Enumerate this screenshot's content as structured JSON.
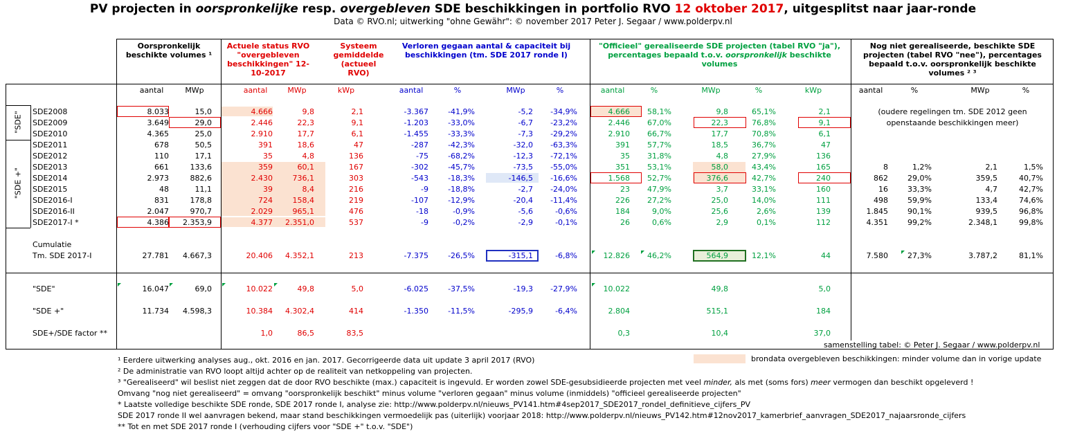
{
  "title": {
    "p1": "PV projecten in ",
    "p2": "oorspronkelijke",
    "p3": " resp. ",
    "p4": "overgebleven",
    "p5": " SDE beschikkingen in portfolio RVO ",
    "date": "12 oktober 2017",
    "p6": ", uitgesplitst naar jaar-ronde"
  },
  "subtitle": "Data © RVO.nl; uitwerking \"ohne Gewähr\": © november 2017 Peter J. Segaar / www.polderpv.nl",
  "headers": {
    "orig": "Oorspronkelijk beschikte volumes ¹",
    "actual": "Actuele status RVO \"overgebleven beschikkingen\" 12-10-2017",
    "system": "Systeem gemiddelde (actueel RVO)",
    "lost": "Verloren gegaan aantal & capaciteit bij beschikkingen (tm. SDE 2017 ronde I)",
    "realised_a": "\"Officieel\" gerealiseerde SDE projecten (tabel RVO \"ja\"), percentages bepaald t.o.v. ",
    "realised_b": "oorspronkelijk",
    "realised_c": " beschikte volumes",
    "notyet": "Nog niet gerealiseerde, beschikte SDE projecten (tabel RVO \"nee\"), percentages bepaald t.o.v. oorspronkelijk beschikte volumes ² ³"
  },
  "units": [
    "aantal",
    "MWp",
    "aantal",
    "MWp",
    "kWp",
    "aantal",
    "%",
    "MWp",
    "%",
    "aantal",
    "%",
    "MWp",
    "%",
    "kWp",
    "aantal",
    "%",
    "MWp",
    "%"
  ],
  "group_labels": {
    "sde": "\"SDE\"",
    "sdeplus": "\"SDE +\""
  },
  "rows": [
    {
      "label": "SDE2008",
      "v": [
        "8.033",
        "15,0",
        "4.666",
        "9,8",
        "2,1",
        "-3.367",
        "-41,9%",
        "-5,2",
        "-34,9%",
        "4.666",
        "58,1%",
        "9,8",
        "65,1%",
        "2,1",
        "",
        "",
        "",
        ""
      ]
    },
    {
      "label": "SDE2009",
      "v": [
        "3.649",
        "29,0",
        "2.446",
        "22,3",
        "9,1",
        "-1.203",
        "-33,0%",
        "-6,7",
        "-23,2%",
        "2.446",
        "67,0%",
        "22,3",
        "76,8%",
        "9,1",
        "",
        "",
        "",
        ""
      ]
    },
    {
      "label": "SDE2010",
      "v": [
        "4.365",
        "25,0",
        "2.910",
        "17,7",
        "6,1",
        "-1.455",
        "-33,3%",
        "-7,3",
        "-29,2%",
        "2.910",
        "66,7%",
        "17,7",
        "70,8%",
        "6,1",
        "",
        "",
        "",
        ""
      ]
    },
    {
      "label": "SDE2011",
      "v": [
        "678",
        "50,5",
        "391",
        "18,6",
        "47",
        "-287",
        "-42,3%",
        "-32,0",
        "-63,3%",
        "391",
        "57,7%",
        "18,5",
        "36,7%",
        "47",
        "",
        "",
        "",
        ""
      ]
    },
    {
      "label": "SDE2012",
      "v": [
        "110",
        "17,1",
        "35",
        "4,8",
        "136",
        "-75",
        "-68,2%",
        "-12,3",
        "-72,1%",
        "35",
        "31,8%",
        "4,8",
        "27,9%",
        "136",
        "",
        "",
        "",
        ""
      ]
    },
    {
      "label": "SDE2013",
      "v": [
        "661",
        "133,6",
        "359",
        "60,1",
        "167",
        "-302",
        "-45,7%",
        "-73,5",
        "-55,0%",
        "351",
        "53,1%",
        "58,0",
        "43,4%",
        "165",
        "8",
        "1,2%",
        "2,1",
        "1,5%"
      ]
    },
    {
      "label": "SDE2014",
      "v": [
        "2.973",
        "882,6",
        "2.430",
        "736,1",
        "303",
        "-543",
        "-18,3%",
        "-146,5",
        "-16,6%",
        "1.568",
        "52,7%",
        "376,6",
        "42,7%",
        "240",
        "862",
        "29,0%",
        "359,5",
        "40,7%"
      ]
    },
    {
      "label": "SDE2015",
      "v": [
        "48",
        "11,1",
        "39",
        "8,4",
        "216",
        "-9",
        "-18,8%",
        "-2,7",
        "-24,0%",
        "23",
        "47,9%",
        "3,7",
        "33,1%",
        "160",
        "16",
        "33,3%",
        "4,7",
        "42,7%"
      ]
    },
    {
      "label": "SDE2016-I",
      "v": [
        "831",
        "178,8",
        "724",
        "158,4",
        "219",
        "-107",
        "-12,9%",
        "-20,4",
        "-11,4%",
        "226",
        "27,2%",
        "25,0",
        "14,0%",
        "111",
        "498",
        "59,9%",
        "133,4",
        "74,6%"
      ]
    },
    {
      "label": "SDE2016-II",
      "v": [
        "2.047",
        "970,7",
        "2.029",
        "965,1",
        "476",
        "-18",
        "-0,9%",
        "-5,6",
        "-0,6%",
        "184",
        "9,0%",
        "25,6",
        "2,6%",
        "139",
        "1.845",
        "90,1%",
        "939,5",
        "96,8%"
      ]
    },
    {
      "label": "SDE2017-I *",
      "v": [
        "4.386",
        "2.353,9",
        "4.377",
        "2.351,0",
        "537",
        "-9",
        "-0,2%",
        "-2,9",
        "-0,1%",
        "26",
        "0,6%",
        "2,9",
        "0,1%",
        "112",
        "4.351",
        "99,2%",
        "2.348,1",
        "99,8%"
      ]
    }
  ],
  "old_note_1": "(oudere regelingen tm. SDE 2012 geen",
  "old_note_2": "openstaande beschikkingen meer)",
  "cumulatie": {
    "label1": "Cumulatie",
    "label2": "Tm. SDE 2017-I",
    "v": [
      "27.781",
      "4.667,3",
      "20.406",
      "4.352,1",
      "213",
      "-7.375",
      "-26,5%",
      "-315,1",
      "-6,8%",
      "12.826",
      "46,2%",
      "564,9",
      "12,1%",
      "44",
      "7.580",
      "27,3%",
      "3.787,2",
      "81,1%"
    ]
  },
  "summary": [
    {
      "label": "\"SDE\"",
      "v": [
        "16.047",
        "69,0",
        "10.022",
        "49,8",
        "5,0",
        "-6.025",
        "-37,5%",
        "-19,3",
        "-27,9%",
        "10.022",
        "",
        "49,8",
        "",
        "5,0",
        "",
        "",
        "",
        ""
      ]
    },
    {
      "label": "\"SDE +\"",
      "v": [
        "11.734",
        "4.598,3",
        "10.384",
        "4.302,4",
        "414",
        "-1.350",
        "-11,5%",
        "-295,9",
        "-6,4%",
        "2.804",
        "",
        "515,1",
        "",
        "184",
        "",
        "",
        "",
        ""
      ]
    },
    {
      "label": "SDE+/SDE factor **",
      "v": [
        "",
        "",
        "1,0",
        "86,5",
        "83,5",
        "",
        "",
        "",
        "",
        "0,3",
        "",
        "10,4",
        "",
        "37,0",
        "",
        "",
        "",
        ""
      ]
    }
  ],
  "credit": "samenstelling tabel: © Peter J. Segaar / www.polderpv.nl",
  "legend": "brondata overgebleven beschikkingen: minder volume dan in vorige update",
  "footnotes": {
    "f1": "¹ Eerdere uitwerking analyses aug., okt. 2016 en jan. 2017. Gecorrigeerde data uit update 3 april 2017 (RVO)",
    "f2": "² De administratie van RVO loopt altijd achter op de realiteit van netkoppeling van projecten.",
    "f3a": "³ \"Gerealiseerd\" wil beslist niet zeggen dat de door RVO beschikte (max.) capaciteit is ingevuld. Er worden zowel SDE-gesubsidieerde projecten met veel ",
    "f3b": "minder,",
    "f3c": " als met (soms fors) ",
    "f3d": "meer",
    "f3e": "  vermogen dan beschikt opgeleverd !",
    "f4": "Omvang \"nog niet gerealiseerd\" = omvang \"oorspronkelijk beschikt\" minus volume \"verloren gegaan\" minus volume (inmiddels) \"officieel gerealiseerde projecten\"",
    "f5": "* Laatste volledige beschikte SDE ronde, SDE 2017 ronde I, analyse zie: http://www.polderpv.nl/nieuws_PV141.htm#4sep2017_SDE2017_rondeI_definitieve_cijfers_PV",
    "f6": "SDE 2017 ronde II wel aanvragen bekend, maar stand beschikkingen vermoedelijk pas (uiterlijk) voorjaar 2018: http://www.polderpv.nl/nieuws_PV142.htm#12nov2017_kamerbrief_aanvragen_SDE2017_najaarsronde_cijfers",
    "f7": "** Tot en met SDE 2017 ronde I (verhouding cijfers voor \"SDE +\" t.o.v. \"SDE\")"
  },
  "colors": {
    "red": "#e00000",
    "blue": "#0000cc",
    "green": "#00a040",
    "highlight": "#fbe2d1"
  }
}
